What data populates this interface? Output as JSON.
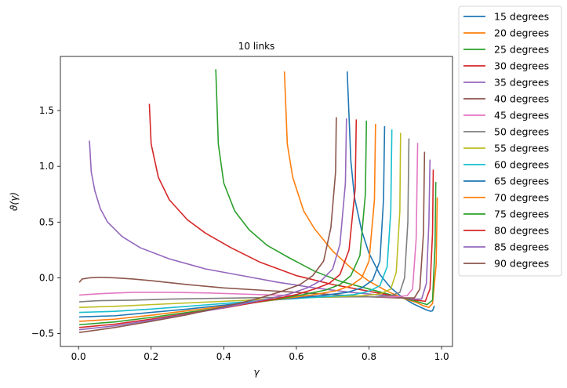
{
  "chart_data": {
    "type": "line",
    "title": "10 links",
    "xlabel": "γ",
    "ylabel": "ϑ(γ)",
    "xlim": [
      -0.05,
      1.03
    ],
    "ylim": [
      -0.615,
      1.985
    ],
    "xticks": [
      0.0,
      0.2,
      0.4,
      0.6,
      0.8,
      1.0
    ],
    "xtick_labels": [
      "0.0",
      "0.2",
      "0.4",
      "0.6",
      "0.8",
      "1.0"
    ],
    "yticks": [
      -0.5,
      0.0,
      0.5,
      1.0,
      1.5
    ],
    "ytick_labels": [
      "−0.5",
      "0.0",
      "0.5",
      "1.0",
      "1.5"
    ],
    "grid": false,
    "legend": "outside-right",
    "series": [
      {
        "name": "15 degrees",
        "color": "#1f77b4",
        "points": [
          [
            0.74,
            1.85
          ],
          [
            0.75,
            1.05
          ],
          [
            0.76,
            0.72
          ],
          [
            0.78,
            0.42
          ],
          [
            0.8,
            0.22
          ],
          [
            0.83,
            0.03
          ],
          [
            0.86,
            -0.09
          ],
          [
            0.89,
            -0.17
          ],
          [
            0.92,
            -0.23
          ],
          [
            0.94,
            -0.26
          ],
          [
            0.96,
            -0.29
          ],
          [
            0.97,
            -0.3
          ],
          [
            0.975,
            -0.295
          ],
          [
            0.98,
            -0.25
          ]
        ]
      },
      {
        "name": "20 degrees",
        "color": "#ff7f0e",
        "points": [
          [
            0.567,
            1.85
          ],
          [
            0.575,
            1.2
          ],
          [
            0.59,
            0.9
          ],
          [
            0.62,
            0.6
          ],
          [
            0.65,
            0.44
          ],
          [
            0.7,
            0.24
          ],
          [
            0.75,
            0.09
          ],
          [
            0.8,
            -0.03
          ],
          [
            0.85,
            -0.12
          ],
          [
            0.9,
            -0.19
          ],
          [
            0.93,
            -0.22
          ],
          [
            0.95,
            -0.25
          ],
          [
            0.965,
            -0.265
          ],
          [
            0.975,
            -0.23
          ],
          [
            0.985,
            0.12
          ],
          [
            0.988,
            0.72
          ]
        ]
      },
      {
        "name": "25 degrees",
        "color": "#2ca02c",
        "points": [
          [
            0.378,
            1.87
          ],
          [
            0.385,
            1.2
          ],
          [
            0.4,
            0.85
          ],
          [
            0.43,
            0.6
          ],
          [
            0.47,
            0.43
          ],
          [
            0.52,
            0.29
          ],
          [
            0.58,
            0.18
          ],
          [
            0.65,
            0.06
          ],
          [
            0.72,
            -0.03
          ],
          [
            0.8,
            -0.1
          ],
          [
            0.88,
            -0.17
          ],
          [
            0.93,
            -0.21
          ],
          [
            0.96,
            -0.24
          ],
          [
            0.975,
            -0.2
          ],
          [
            0.982,
            0.3
          ],
          [
            0.984,
            0.86
          ]
        ]
      },
      {
        "name": "30 degrees",
        "color": "#d62728",
        "points": [
          [
            0.195,
            1.56
          ],
          [
            0.2,
            1.2
          ],
          [
            0.22,
            0.9
          ],
          [
            0.25,
            0.7
          ],
          [
            0.3,
            0.52
          ],
          [
            0.35,
            0.4
          ],
          [
            0.42,
            0.27
          ],
          [
            0.5,
            0.14
          ],
          [
            0.6,
            0.02
          ],
          [
            0.7,
            -0.06
          ],
          [
            0.8,
            -0.12
          ],
          [
            0.88,
            -0.17
          ],
          [
            0.93,
            -0.2
          ],
          [
            0.955,
            -0.21
          ],
          [
            0.968,
            -0.1
          ],
          [
            0.975,
            0.4
          ],
          [
            0.977,
            0.97
          ]
        ]
      },
      {
        "name": "35 degrees",
        "color": "#9467bd",
        "points": [
          [
            0.03,
            1.23
          ],
          [
            0.035,
            0.95
          ],
          [
            0.045,
            0.78
          ],
          [
            0.06,
            0.62
          ],
          [
            0.08,
            0.5
          ],
          [
            0.12,
            0.37
          ],
          [
            0.17,
            0.27
          ],
          [
            0.25,
            0.17
          ],
          [
            0.35,
            0.08
          ],
          [
            0.45,
            0.02
          ],
          [
            0.55,
            -0.04
          ],
          [
            0.65,
            -0.09
          ],
          [
            0.75,
            -0.13
          ],
          [
            0.85,
            -0.16
          ],
          [
            0.92,
            -0.19
          ],
          [
            0.945,
            -0.19
          ],
          [
            0.958,
            -0.05
          ],
          [
            0.965,
            0.5
          ],
          [
            0.968,
            1.06
          ]
        ]
      },
      {
        "name": "40 degrees",
        "color": "#8c564b",
        "points": [
          [
            0.002,
            -0.04
          ],
          [
            0.01,
            -0.01
          ],
          [
            0.03,
            0.0
          ],
          [
            0.06,
            0.005
          ],
          [
            0.1,
            0.0
          ],
          [
            0.15,
            -0.01
          ],
          [
            0.2,
            -0.025
          ],
          [
            0.3,
            -0.06
          ],
          [
            0.4,
            -0.09
          ],
          [
            0.5,
            -0.11
          ],
          [
            0.6,
            -0.13
          ],
          [
            0.7,
            -0.15
          ],
          [
            0.8,
            -0.17
          ],
          [
            0.88,
            -0.18
          ],
          [
            0.925,
            -0.18
          ],
          [
            0.94,
            -0.1
          ],
          [
            0.95,
            0.4
          ],
          [
            0.953,
            1.13
          ]
        ]
      },
      {
        "name": "45 degrees",
        "color": "#e377c2",
        "points": [
          [
            0.002,
            -0.155
          ],
          [
            0.02,
            -0.15
          ],
          [
            0.07,
            -0.14
          ],
          [
            0.15,
            -0.13
          ],
          [
            0.25,
            -0.13
          ],
          [
            0.35,
            -0.135
          ],
          [
            0.45,
            -0.145
          ],
          [
            0.55,
            -0.155
          ],
          [
            0.65,
            -0.165
          ],
          [
            0.75,
            -0.17
          ],
          [
            0.82,
            -0.17
          ],
          [
            0.87,
            -0.17
          ],
          [
            0.905,
            -0.16
          ],
          [
            0.92,
            -0.1
          ],
          [
            0.93,
            0.35
          ],
          [
            0.934,
            1.21
          ]
        ]
      },
      {
        "name": "50 degrees",
        "color": "#7f7f7f",
        "points": [
          [
            0.002,
            -0.215
          ],
          [
            0.05,
            -0.205
          ],
          [
            0.15,
            -0.2
          ],
          [
            0.25,
            -0.19
          ],
          [
            0.35,
            -0.185
          ],
          [
            0.45,
            -0.18
          ],
          [
            0.55,
            -0.175
          ],
          [
            0.65,
            -0.175
          ],
          [
            0.75,
            -0.17
          ],
          [
            0.82,
            -0.17
          ],
          [
            0.86,
            -0.16
          ],
          [
            0.885,
            -0.13
          ],
          [
            0.898,
            0.0
          ],
          [
            0.907,
            0.5
          ],
          [
            0.91,
            1.25
          ]
        ]
      },
      {
        "name": "55 degrees",
        "color": "#bcbd22",
        "points": [
          [
            0.002,
            -0.265
          ],
          [
            0.1,
            -0.255
          ],
          [
            0.2,
            -0.24
          ],
          [
            0.3,
            -0.225
          ],
          [
            0.4,
            -0.21
          ],
          [
            0.5,
            -0.195
          ],
          [
            0.6,
            -0.18
          ],
          [
            0.7,
            -0.17
          ],
          [
            0.78,
            -0.16
          ],
          [
            0.83,
            -0.145
          ],
          [
            0.86,
            -0.1
          ],
          [
            0.875,
            0.05
          ],
          [
            0.885,
            0.6
          ],
          [
            0.887,
            1.3
          ]
        ]
      },
      {
        "name": "60 degrees",
        "color": "#17becf",
        "points": [
          [
            0.002,
            -0.31
          ],
          [
            0.1,
            -0.3
          ],
          [
            0.2,
            -0.28
          ],
          [
            0.3,
            -0.255
          ],
          [
            0.4,
            -0.23
          ],
          [
            0.5,
            -0.205
          ],
          [
            0.6,
            -0.185
          ],
          [
            0.7,
            -0.165
          ],
          [
            0.76,
            -0.15
          ],
          [
            0.8,
            -0.12
          ],
          [
            0.83,
            -0.07
          ],
          [
            0.85,
            0.1
          ],
          [
            0.86,
            0.6
          ],
          [
            0.863,
            1.33
          ]
        ]
      },
      {
        "name": "65 degrees",
        "color": "#1f77b4",
        "points": [
          [
            0.002,
            -0.35
          ],
          [
            0.1,
            -0.34
          ],
          [
            0.2,
            -0.31
          ],
          [
            0.3,
            -0.28
          ],
          [
            0.4,
            -0.245
          ],
          [
            0.5,
            -0.21
          ],
          [
            0.6,
            -0.18
          ],
          [
            0.68,
            -0.155
          ],
          [
            0.74,
            -0.13
          ],
          [
            0.78,
            -0.09
          ],
          [
            0.81,
            -0.02
          ],
          [
            0.83,
            0.15
          ],
          [
            0.84,
            0.7
          ],
          [
            0.843,
            1.36
          ]
        ]
      },
      {
        "name": "70 degrees",
        "color": "#ff7f0e",
        "points": [
          [
            0.002,
            -0.39
          ],
          [
            0.1,
            -0.37
          ],
          [
            0.2,
            -0.335
          ],
          [
            0.3,
            -0.295
          ],
          [
            0.4,
            -0.255
          ],
          [
            0.5,
            -0.215
          ],
          [
            0.58,
            -0.18
          ],
          [
            0.65,
            -0.15
          ],
          [
            0.71,
            -0.115
          ],
          [
            0.75,
            -0.07
          ],
          [
            0.78,
            0.0
          ],
          [
            0.8,
            0.15
          ],
          [
            0.815,
            0.7
          ],
          [
            0.818,
            1.38
          ]
        ]
      },
      {
        "name": "75 degrees",
        "color": "#2ca02c",
        "points": [
          [
            0.002,
            -0.42
          ],
          [
            0.1,
            -0.395
          ],
          [
            0.2,
            -0.355
          ],
          [
            0.3,
            -0.31
          ],
          [
            0.4,
            -0.265
          ],
          [
            0.48,
            -0.225
          ],
          [
            0.55,
            -0.19
          ],
          [
            0.62,
            -0.15
          ],
          [
            0.68,
            -0.11
          ],
          [
            0.72,
            -0.06
          ],
          [
            0.75,
            0.02
          ],
          [
            0.775,
            0.2
          ],
          [
            0.79,
            0.75
          ],
          [
            0.793,
            1.41
          ]
        ]
      },
      {
        "name": "80 degrees",
        "color": "#d62728",
        "points": [
          [
            0.002,
            -0.445
          ],
          [
            0.1,
            -0.415
          ],
          [
            0.2,
            -0.37
          ],
          [
            0.3,
            -0.32
          ],
          [
            0.4,
            -0.27
          ],
          [
            0.47,
            -0.23
          ],
          [
            0.54,
            -0.19
          ],
          [
            0.6,
            -0.15
          ],
          [
            0.65,
            -0.1
          ],
          [
            0.69,
            -0.05
          ],
          [
            0.72,
            0.03
          ],
          [
            0.745,
            0.25
          ],
          [
            0.762,
            0.8
          ],
          [
            0.765,
            1.42
          ]
        ]
      },
      {
        "name": "85 degrees",
        "color": "#9467bd",
        "points": [
          [
            0.002,
            -0.465
          ],
          [
            0.1,
            -0.43
          ],
          [
            0.2,
            -0.38
          ],
          [
            0.3,
            -0.325
          ],
          [
            0.38,
            -0.28
          ],
          [
            0.45,
            -0.235
          ],
          [
            0.52,
            -0.19
          ],
          [
            0.58,
            -0.145
          ],
          [
            0.63,
            -0.09
          ],
          [
            0.67,
            -0.02
          ],
          [
            0.7,
            0.08
          ],
          [
            0.72,
            0.3
          ],
          [
            0.735,
            0.85
          ],
          [
            0.738,
            1.43
          ]
        ]
      },
      {
        "name": "90 degrees",
        "color": "#8c564b",
        "points": [
          [
            0.002,
            -0.49
          ],
          [
            0.1,
            -0.445
          ],
          [
            0.2,
            -0.39
          ],
          [
            0.3,
            -0.33
          ],
          [
            0.37,
            -0.28
          ],
          [
            0.44,
            -0.23
          ],
          [
            0.5,
            -0.18
          ],
          [
            0.56,
            -0.12
          ],
          [
            0.61,
            -0.06
          ],
          [
            0.645,
            0.02
          ],
          [
            0.675,
            0.15
          ],
          [
            0.695,
            0.45
          ],
          [
            0.708,
            0.95
          ],
          [
            0.71,
            1.44
          ]
        ]
      }
    ]
  }
}
